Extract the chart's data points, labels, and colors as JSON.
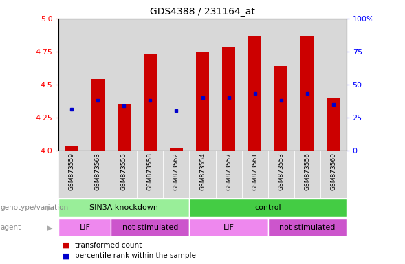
{
  "title": "GDS4388 / 231164_at",
  "samples": [
    "GSM873559",
    "GSM873563",
    "GSM873555",
    "GSM873558",
    "GSM873562",
    "GSM873554",
    "GSM873557",
    "GSM873561",
    "GSM873553",
    "GSM873556",
    "GSM873560"
  ],
  "red_bar_values": [
    4.03,
    4.54,
    4.35,
    4.73,
    4.02,
    4.75,
    4.78,
    4.87,
    4.64,
    4.87,
    4.4
  ],
  "blue_dot_values": [
    4.31,
    4.38,
    4.34,
    4.38,
    4.3,
    4.4,
    4.4,
    4.43,
    4.38,
    4.43,
    4.35
  ],
  "ymin": 4.0,
  "ymax": 5.0,
  "yticks_left": [
    4.0,
    4.25,
    4.5,
    4.75,
    5.0
  ],
  "yticks_right_labels": [
    "0",
    "25",
    "50",
    "75",
    "100%"
  ],
  "bar_color": "#cc0000",
  "dot_color": "#0000cc",
  "cell_bg_color": "#d8d8d8",
  "groups": [
    {
      "label": "SIN3A knockdown",
      "start": 0,
      "end": 5,
      "color": "#99ee99"
    },
    {
      "label": "control",
      "start": 5,
      "end": 11,
      "color": "#44cc44"
    }
  ],
  "agents": [
    {
      "label": "LIF",
      "start": 0,
      "end": 2,
      "color": "#ee88ee"
    },
    {
      "label": "not stimulated",
      "start": 2,
      "end": 5,
      "color": "#cc55cc"
    },
    {
      "label": "LIF",
      "start": 5,
      "end": 8,
      "color": "#ee88ee"
    },
    {
      "label": "not stimulated",
      "start": 8,
      "end": 11,
      "color": "#cc55cc"
    }
  ],
  "legend_red": "transformed count",
  "legend_blue": "percentile rank within the sample",
  "label_genotype": "genotype/variation",
  "label_agent": "agent",
  "grid_lines": [
    4.25,
    4.5,
    4.75
  ]
}
